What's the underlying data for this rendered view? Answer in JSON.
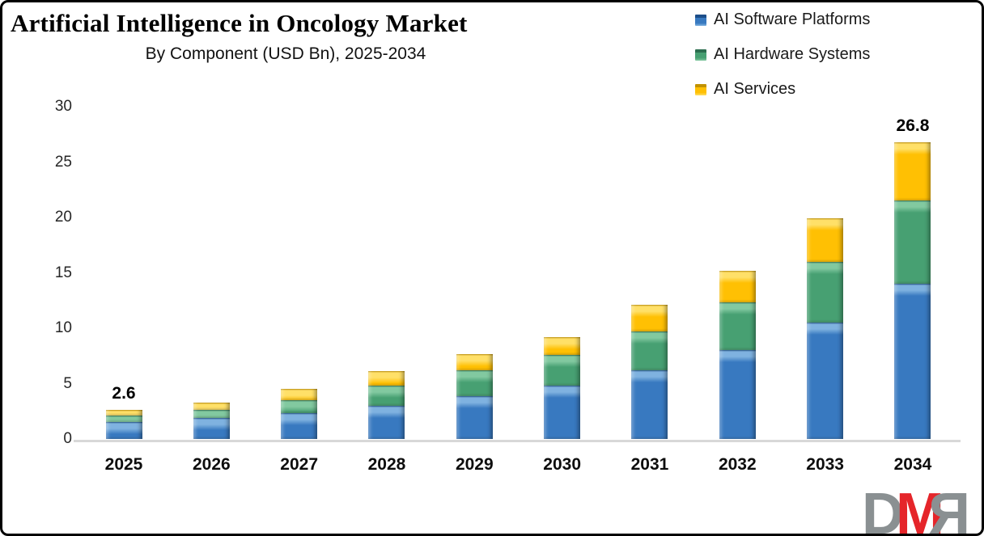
{
  "header": {
    "title": "Artificial Intelligence in Oncology Market",
    "subtitle": "By Component (USD Bn), 2025-2034"
  },
  "chart_data": {
    "type": "bar",
    "stacked": true,
    "title": "Artificial Intelligence in Oncology Market",
    "subtitle": "By Component (USD Bn), 2025-2034",
    "xlabel": "",
    "ylabel": "USD Bn",
    "ylim": [
      0,
      30
    ],
    "yticks": [
      0,
      5,
      10,
      15,
      20,
      25,
      30
    ],
    "grid": false,
    "legend_position": "top-right",
    "categories": [
      "2025",
      "2026",
      "2027",
      "2028",
      "2029",
      "2030",
      "2031",
      "2032",
      "2033",
      "2034"
    ],
    "series": [
      {
        "name": "AI Software Platforms",
        "color": "#3879c0",
        "highlight": "#7fb2e0",
        "dark": "#1c4e89",
        "values": [
          1.5,
          1.9,
          2.3,
          3.0,
          3.9,
          4.8,
          6.2,
          8.0,
          10.5,
          14.0
        ]
      },
      {
        "name": "AI Hardware Systems",
        "color": "#47a072",
        "highlight": "#82c9a0",
        "dark": "#2c6e4f",
        "values": [
          0.6,
          0.7,
          1.2,
          1.8,
          2.3,
          2.8,
          3.5,
          4.3,
          5.5,
          7.5
        ]
      },
      {
        "name": "AI Services",
        "color": "#ffc003",
        "highlight": "#ffe068",
        "dark": "#c29202",
        "values": [
          0.5,
          0.7,
          1.0,
          1.3,
          1.5,
          1.6,
          2.4,
          2.9,
          3.9,
          5.3
        ]
      }
    ],
    "totals": [
      2.6,
      3.3,
      4.5,
      6.1,
      7.7,
      9.2,
      12.1,
      15.2,
      19.9,
      26.8
    ],
    "annotations": [
      {
        "index": 0,
        "text": "2.6"
      },
      {
        "index": 9,
        "text": "26.8"
      }
    ]
  },
  "watermark": {
    "letters": [
      {
        "text": "D",
        "color": "#8a9092",
        "mirrored": false
      },
      {
        "text": "M",
        "color": "#e5252a",
        "mirrored": false
      },
      {
        "text": "R",
        "color": "#8a9092",
        "mirrored": true
      }
    ]
  }
}
